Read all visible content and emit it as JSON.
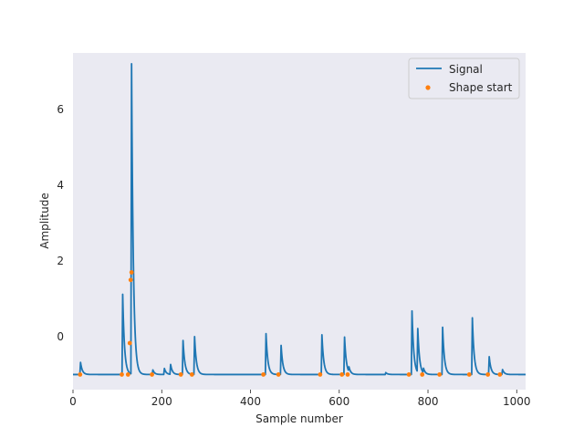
{
  "chart_data": {
    "type": "line",
    "title": "",
    "xlabel": "Sample number",
    "ylabel": "Amplitude",
    "xlim": [
      0,
      1020
    ],
    "ylim": [
      -1.4,
      7.5
    ],
    "xticks": [
      0,
      200,
      400,
      600,
      800,
      1000
    ],
    "yticks": [
      0,
      2,
      4,
      6
    ],
    "grid": false,
    "legend_position": "top-right",
    "colors": {
      "signal": "#1f77b4",
      "shape_start": "#ff7f0e",
      "plot_bg": "#eaeaf2"
    },
    "baseline": -1.0,
    "series": [
      {
        "name": "Signal",
        "kind": "line",
        "peaks": [
          {
            "x": 17,
            "h": 0.32
          },
          {
            "x": 112,
            "h": 2.12
          },
          {
            "x": 132,
            "h": 8.2
          },
          {
            "x": 180,
            "h": 0.12
          },
          {
            "x": 206,
            "h": 0.16
          },
          {
            "x": 220,
            "h": 0.26
          },
          {
            "x": 248,
            "h": 0.9
          },
          {
            "x": 274,
            "h": 1.0
          },
          {
            "x": 435,
            "h": 1.08
          },
          {
            "x": 469,
            "h": 0.77
          },
          {
            "x": 561,
            "h": 1.05
          },
          {
            "x": 612,
            "h": 0.99
          },
          {
            "x": 622,
            "h": 0.12
          },
          {
            "x": 705,
            "h": 0.05
          },
          {
            "x": 764,
            "h": 1.68
          },
          {
            "x": 777,
            "h": 1.15
          },
          {
            "x": 790,
            "h": 0.12
          },
          {
            "x": 833,
            "h": 1.25
          },
          {
            "x": 900,
            "h": 1.5
          },
          {
            "x": 938,
            "h": 0.47
          },
          {
            "x": 968,
            "h": 0.13
          }
        ]
      },
      {
        "name": "Shape start",
        "kind": "scatter",
        "points": [
          {
            "x": 16,
            "y": -1.0
          },
          {
            "x": 110,
            "y": -1.0
          },
          {
            "x": 124,
            "y": -1.0
          },
          {
            "x": 128,
            "y": -0.17
          },
          {
            "x": 130,
            "y": 1.5
          },
          {
            "x": 132,
            "y": 1.7
          },
          {
            "x": 178,
            "y": -1.0
          },
          {
            "x": 243,
            "y": -1.0
          },
          {
            "x": 268,
            "y": -1.0
          },
          {
            "x": 429,
            "y": -1.0
          },
          {
            "x": 463,
            "y": -1.0
          },
          {
            "x": 557,
            "y": -1.0
          },
          {
            "x": 606,
            "y": -1.0
          },
          {
            "x": 619,
            "y": -1.0
          },
          {
            "x": 757,
            "y": -1.0
          },
          {
            "x": 787,
            "y": -1.0
          },
          {
            "x": 826,
            "y": -1.0
          },
          {
            "x": 893,
            "y": -1.0
          },
          {
            "x": 935,
            "y": -1.0
          },
          {
            "x": 962,
            "y": -1.0
          }
        ]
      }
    ]
  }
}
